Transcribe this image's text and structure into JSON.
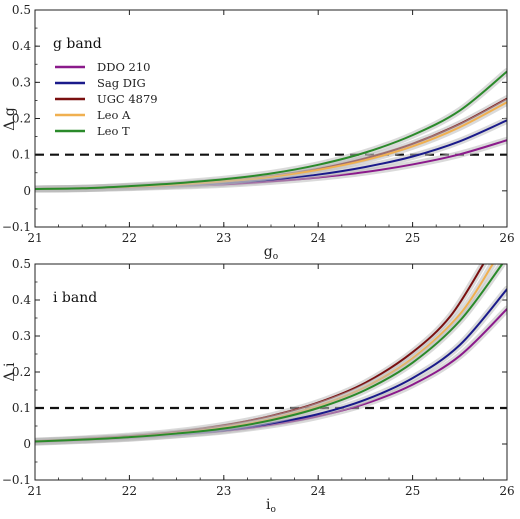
{
  "chart_data": [
    {
      "type": "line",
      "panel_label": "g band",
      "xlabel": "g",
      "xlabel_sub": "o",
      "ylabel": "Δ g",
      "xlim": [
        21,
        26
      ],
      "ylim": [
        -0.1,
        0.5
      ],
      "x_ticks": [
        "21",
        "22",
        "23",
        "24",
        "25",
        "26"
      ],
      "y_ticks": [
        "−0.1",
        "0",
        "0.1",
        "0.2",
        "0.3",
        "0.4",
        "0.5"
      ],
      "legend_position": "top-left",
      "reference_line": {
        "y": 0.1,
        "style": "dashed"
      },
      "series": [
        {
          "name": "DDO 210",
          "color": "#8b1a8b",
          "x": [
            21,
            21.5,
            22,
            22.5,
            23,
            23.5,
            24,
            24.5,
            25,
            25.5,
            26
          ],
          "y": [
            0.005,
            0.006,
            0.009,
            0.013,
            0.018,
            0.026,
            0.037,
            0.052,
            0.073,
            0.101,
            0.14
          ]
        },
        {
          "name": "Sag DIG",
          "color": "#1a1a8b",
          "x": [
            21,
            21.5,
            22,
            22.5,
            23,
            23.5,
            24,
            24.5,
            25,
            25.5,
            26
          ],
          "y": [
            0.005,
            0.006,
            0.01,
            0.015,
            0.021,
            0.031,
            0.045,
            0.066,
            0.095,
            0.137,
            0.195
          ]
        },
        {
          "name": "UGC 4879",
          "color": "#7a1010",
          "x": [
            21,
            21.5,
            22,
            22.5,
            23,
            23.5,
            24,
            24.5,
            25,
            25.5,
            26
          ],
          "y": [
            0.005,
            0.007,
            0.012,
            0.018,
            0.027,
            0.041,
            0.061,
            0.09,
            0.13,
            0.185,
            0.255
          ]
        },
        {
          "name": "Leo A",
          "color": "#f0b050",
          "x": [
            21,
            21.5,
            22,
            22.5,
            23,
            23.5,
            24,
            24.5,
            25,
            25.5,
            26
          ],
          "y": [
            0.005,
            0.007,
            0.011,
            0.017,
            0.026,
            0.039,
            0.058,
            0.085,
            0.123,
            0.176,
            0.245
          ]
        },
        {
          "name": "Leo T",
          "color": "#2a8a2a",
          "x": [
            21,
            21.5,
            22,
            22.5,
            23,
            23.5,
            24,
            24.5,
            25,
            25.5,
            26
          ],
          "y": [
            0.005,
            0.007,
            0.013,
            0.021,
            0.032,
            0.048,
            0.072,
            0.106,
            0.154,
            0.222,
            0.33
          ]
        }
      ]
    },
    {
      "type": "line",
      "panel_label": "i band",
      "xlabel": "i",
      "xlabel_sub": "o",
      "ylabel": "Δ i",
      "xlim": [
        21,
        26
      ],
      "ylim": [
        -0.1,
        0.5
      ],
      "x_ticks": [
        "21",
        "22",
        "23",
        "24",
        "25",
        "26"
      ],
      "y_ticks": [
        "−0.1",
        "0",
        "0.1",
        "0.2",
        "0.3",
        "0.4",
        "0.5"
      ],
      "reference_line": {
        "y": 0.1,
        "style": "dashed"
      },
      "series": [
        {
          "name": "DDO 210",
          "color": "#8b1a8b",
          "x": [
            21,
            21.5,
            22,
            22.5,
            23,
            23.5,
            24,
            24.5,
            25,
            25.5,
            26
          ],
          "y": [
            0.005,
            0.01,
            0.016,
            0.025,
            0.036,
            0.053,
            0.077,
            0.112,
            0.165,
            0.245,
            0.375
          ]
        },
        {
          "name": "Sag DIG",
          "color": "#1a1a8b",
          "x": [
            21,
            21.5,
            22,
            22.5,
            23,
            23.5,
            24,
            24.5,
            25,
            25.5,
            26
          ],
          "y": [
            0.006,
            0.011,
            0.017,
            0.026,
            0.038,
            0.057,
            0.083,
            0.123,
            0.183,
            0.275,
            0.43
          ]
        },
        {
          "name": "UGC 4879",
          "color": "#7a1010",
          "x": [
            21,
            21.5,
            22,
            22.5,
            23,
            23.5,
            24,
            24.5,
            25,
            25.4,
            25.75
          ],
          "y": [
            0.008,
            0.014,
            0.022,
            0.034,
            0.052,
            0.078,
            0.115,
            0.17,
            0.255,
            0.355,
            0.5
          ]
        },
        {
          "name": "Leo A",
          "color": "#f0b050",
          "x": [
            21,
            21.5,
            22,
            22.5,
            23,
            23.5,
            24,
            24.5,
            25,
            25.5,
            25.85
          ],
          "y": [
            0.007,
            0.012,
            0.019,
            0.03,
            0.046,
            0.07,
            0.106,
            0.158,
            0.238,
            0.36,
            0.5
          ]
        },
        {
          "name": "Leo T",
          "color": "#2a8a2a",
          "x": [
            21,
            21.5,
            22,
            22.5,
            23,
            23.5,
            24,
            24.5,
            25,
            25.5,
            25.95
          ],
          "y": [
            0.007,
            0.012,
            0.019,
            0.029,
            0.043,
            0.066,
            0.1,
            0.15,
            0.226,
            0.342,
            0.5
          ]
        }
      ]
    }
  ]
}
